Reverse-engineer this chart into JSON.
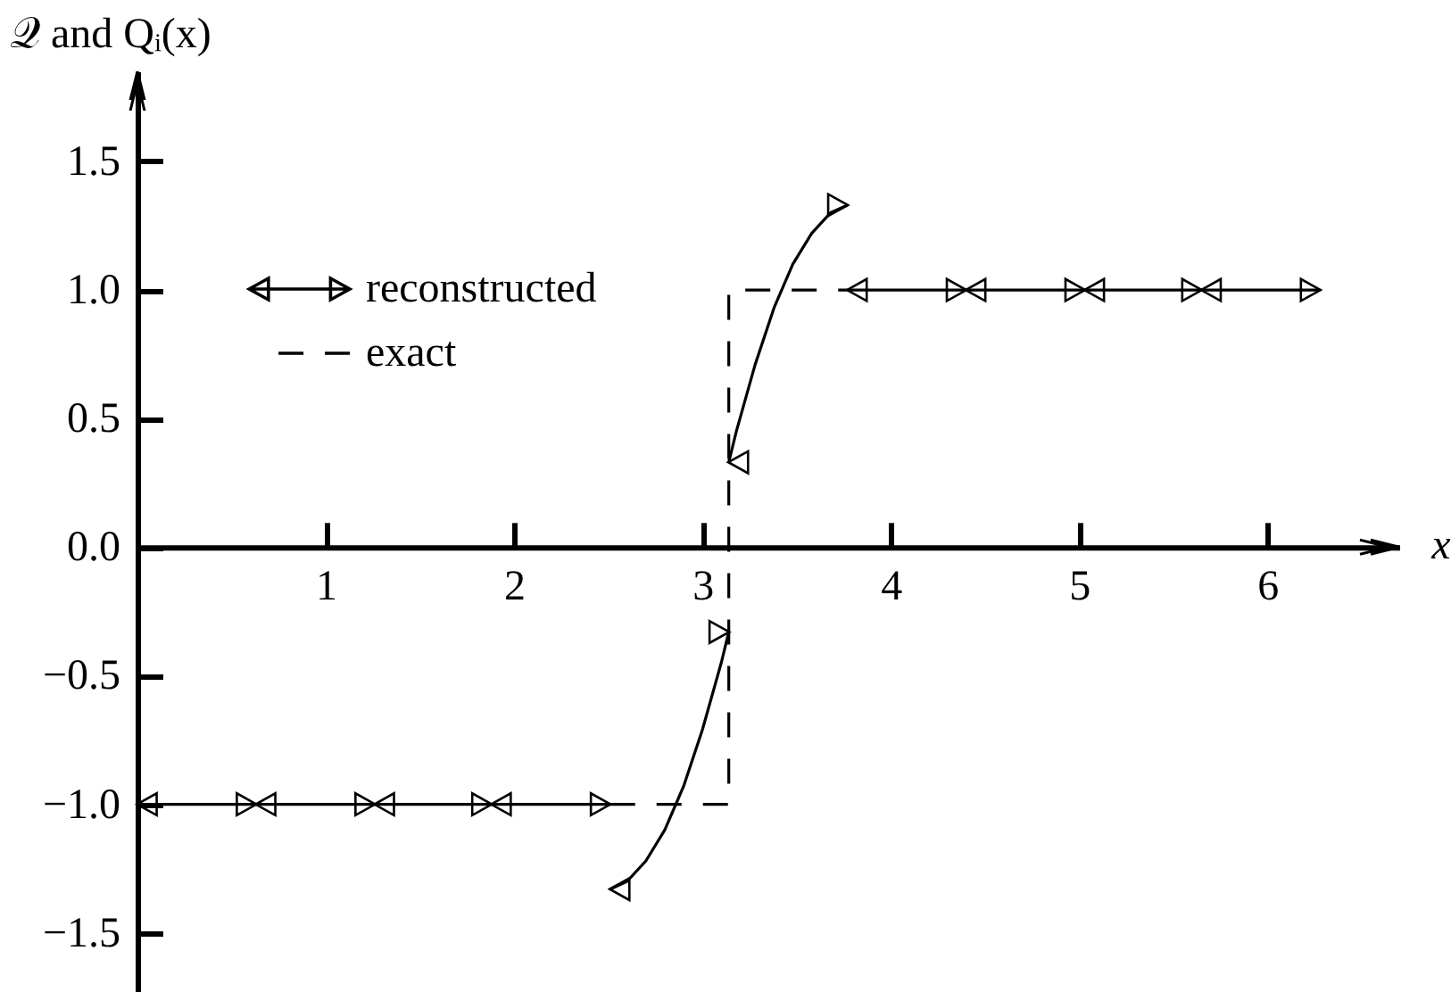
{
  "chart_data": {
    "type": "line",
    "ylabel": "𝒬 and Qᵢ(x)",
    "xlabel": "x",
    "xlim": [
      0,
      6.7
    ],
    "ylim": [
      -1.73,
      1.85
    ],
    "xticks": [
      1,
      2,
      3,
      4,
      5,
      6
    ],
    "yticks": [
      {
        "value": -1.5,
        "label": "−1.5"
      },
      {
        "value": -1,
        "label": "−1.0"
      },
      {
        "value": -0.5,
        "label": "−0.5"
      },
      {
        "value": 0,
        "label": "0.0"
      },
      0.5,
      {
        "value": 1,
        "label": "1.0"
      },
      1.5
    ],
    "legend": "top left",
    "series": [
      {
        "name": "reconstructed",
        "color": "#000000",
        "line_style": "solid",
        "x": [
          0,
          2.51,
          null,
          2.51,
          2.6,
          2.7,
          2.8,
          2.9,
          3.0,
          3.1,
          3.14,
          null,
          3.14,
          3.18,
          3.28,
          3.38,
          3.48,
          3.58,
          3.68,
          3.77,
          null,
          3.77,
          6.28
        ],
        "values": [
          -1,
          -1,
          null,
          -1.33,
          -1.3,
          -1.22,
          -1.1,
          -0.93,
          -0.71,
          -0.45,
          -0.33,
          null,
          0.33,
          0.45,
          0.71,
          0.93,
          1.1,
          1.22,
          1.3,
          1.33,
          null,
          1,
          1
        ]
      },
      {
        "type": "scatter",
        "color": "#000000",
        "marker": "triangle",
        "x": [
          0.05,
          0.58,
          0.68,
          1.21,
          1.31,
          1.83,
          1.93,
          2.46,
          2.56,
          3.09,
          3.19,
          3.72,
          3.82,
          4.35,
          4.45,
          4.98,
          5.08,
          5.6,
          5.7,
          6.23
        ],
        "values": [
          -1,
          -1,
          -1,
          -1,
          -1,
          -1,
          -1,
          -1,
          -1.33,
          -0.33,
          0.33,
          1.33,
          1,
          1,
          1,
          1,
          1,
          1,
          1,
          1
        ]
      },
      {
        "name": "exact",
        "color": "#000000",
        "line_style": "dashed",
        "x": [
          2.51,
          3.14,
          3.14,
          3.77
        ],
        "values": [
          -1,
          -1,
          1,
          1
        ]
      }
    ]
  }
}
